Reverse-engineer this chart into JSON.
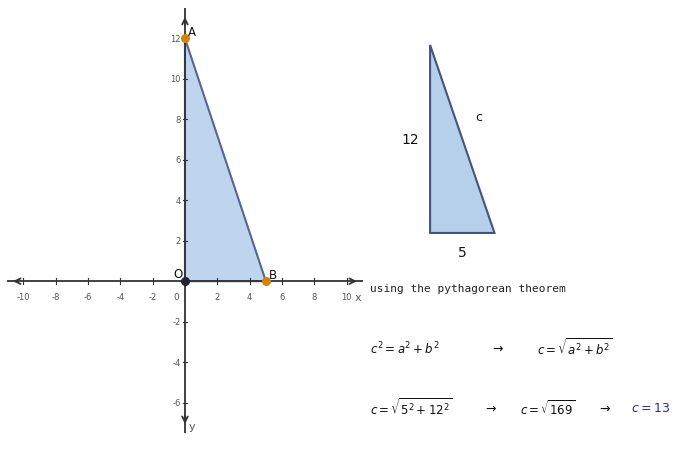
{
  "bg_color": "#e8e8ee",
  "white": "#ffffff",
  "triangle_fill": "#aac8e8",
  "triangle_edge": "#2a3a6a",
  "point_color": "#d4820a",
  "origin_color": "#222233",
  "axis_color": "#333333",
  "tick_color": "#555555",
  "point_A": [
    0,
    12
  ],
  "point_B": [
    5,
    0
  ],
  "point_O": [
    0,
    0
  ],
  "xlim": [
    -11,
    11
  ],
  "ylim": [
    -7.5,
    13.5
  ],
  "xticks": [
    -10,
    -8,
    -6,
    -4,
    -2,
    2,
    4,
    6,
    8,
    10
  ],
  "yticks": [
    -6,
    -4,
    -2,
    2,
    4,
    6,
    8,
    10,
    12
  ],
  "xlabel": "x",
  "ylabel": "y",
  "label_A": "A",
  "label_B": "B",
  "label_O": "O",
  "side_label_12": "12",
  "side_label_5": "5",
  "side_label_c": "c",
  "text_pythagorean": "using the pythagorean theorem"
}
